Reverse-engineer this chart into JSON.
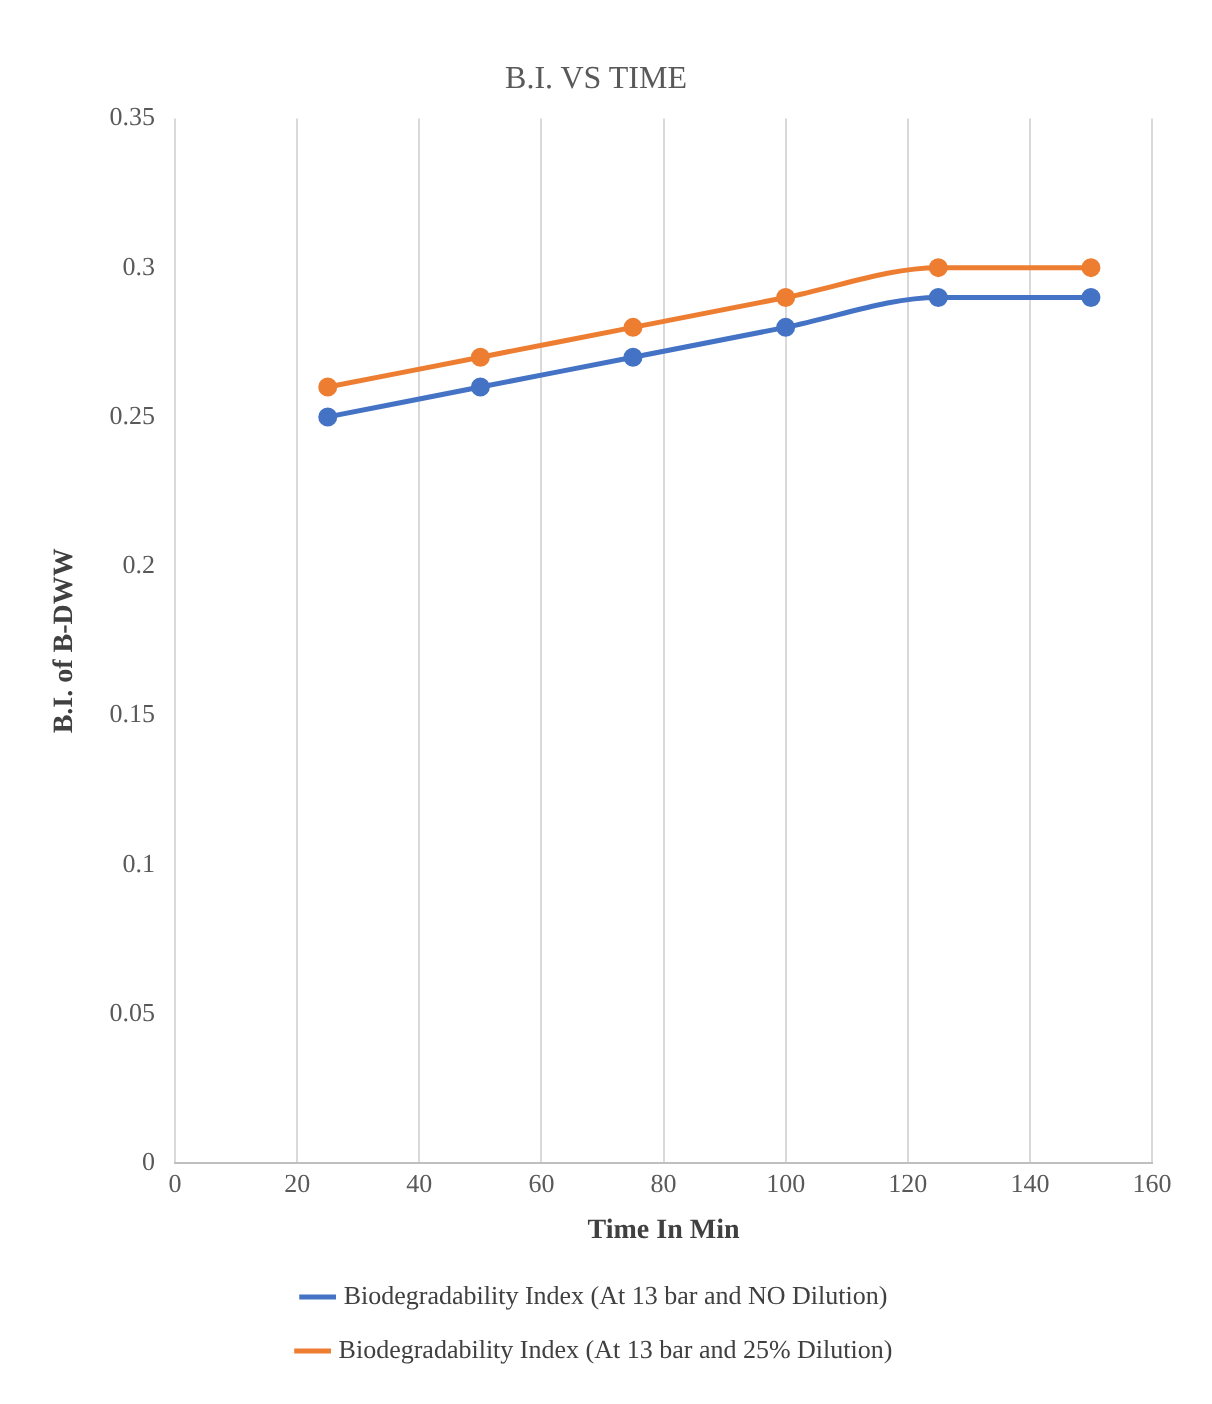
{
  "chart_data": {
    "type": "line",
    "title": "B.I. VS TIME",
    "xlabel": "Time In Min",
    "ylabel": "B.I. of B-DWW",
    "x": [
      25,
      50,
      75,
      100,
      125,
      150
    ],
    "series": [
      {
        "name": "Biodegradability Index (At 13 bar and NO Dilution)",
        "color": "#4472c4",
        "values": [
          0.25,
          0.26,
          0.27,
          0.28,
          0.29,
          0.29
        ]
      },
      {
        "name": "Biodegradability Index (At 13 bar and 25% Dilution)",
        "color": "#ed7d31",
        "values": [
          0.26,
          0.27,
          0.28,
          0.29,
          0.3,
          0.3
        ]
      }
    ],
    "xlim": [
      0,
      160
    ],
    "xticks": [
      0,
      20,
      40,
      60,
      80,
      100,
      120,
      140,
      160
    ],
    "ylim": [
      0,
      0.35
    ],
    "yticks": [
      0,
      0.05,
      0.1,
      0.15,
      0.2,
      0.25,
      0.3,
      0.35
    ],
    "grid": "x",
    "legend": "bottom",
    "marker": "circle",
    "line_style": "solid"
  }
}
